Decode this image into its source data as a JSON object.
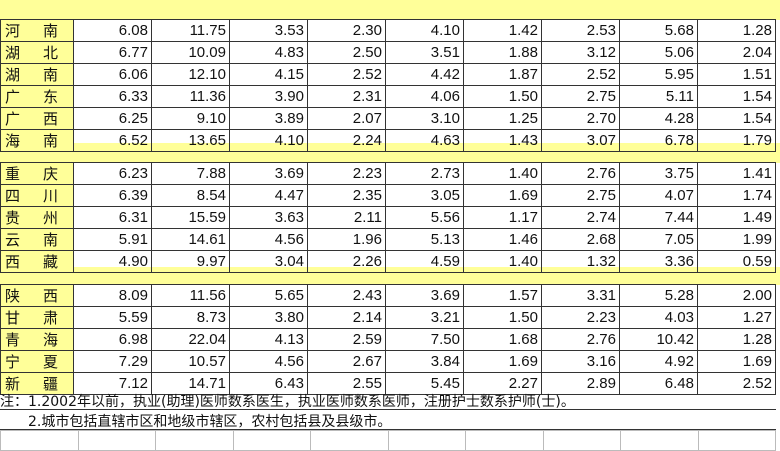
{
  "groups": [
    {
      "rows": [
        {
          "name": [
            "河",
            "南"
          ],
          "values": [
            "6.08",
            "11.75",
            "3.53",
            "2.30",
            "4.10",
            "1.42",
            "2.53",
            "5.68",
            "1.28"
          ]
        },
        {
          "name": [
            "湖",
            "北"
          ],
          "values": [
            "6.77",
            "10.09",
            "4.83",
            "2.50",
            "3.51",
            "1.88",
            "3.12",
            "5.06",
            "2.04"
          ]
        },
        {
          "name": [
            "湖",
            "南"
          ],
          "values": [
            "6.06",
            "12.10",
            "4.15",
            "2.52",
            "4.42",
            "1.87",
            "2.52",
            "5.95",
            "1.51"
          ]
        },
        {
          "name": [
            "广",
            "东"
          ],
          "values": [
            "6.33",
            "11.36",
            "3.90",
            "2.31",
            "4.06",
            "1.50",
            "2.75",
            "5.11",
            "1.54"
          ]
        },
        {
          "name": [
            "广",
            "西"
          ],
          "values": [
            "6.25",
            "9.10",
            "3.89",
            "2.07",
            "3.10",
            "1.25",
            "2.70",
            "4.28",
            "1.54"
          ]
        },
        {
          "name": [
            "海",
            "南"
          ],
          "values": [
            "6.52",
            "13.65",
            "4.10",
            "2.24",
            "4.63",
            "1.43",
            "3.07",
            "6.78",
            "1.79"
          ]
        }
      ]
    },
    {
      "rows": [
        {
          "name": [
            "重",
            "庆"
          ],
          "values": [
            "6.23",
            "7.88",
            "3.69",
            "2.23",
            "2.73",
            "1.40",
            "2.76",
            "3.75",
            "1.41"
          ]
        },
        {
          "name": [
            "四",
            "川"
          ],
          "values": [
            "6.39",
            "8.54",
            "4.47",
            "2.35",
            "3.05",
            "1.69",
            "2.75",
            "4.07",
            "1.74"
          ]
        },
        {
          "name": [
            "贵",
            "州"
          ],
          "values": [
            "6.31",
            "15.59",
            "3.63",
            "2.11",
            "5.56",
            "1.17",
            "2.74",
            "7.44",
            "1.49"
          ]
        },
        {
          "name": [
            "云",
            "南"
          ],
          "values": [
            "5.91",
            "14.61",
            "4.56",
            "1.96",
            "5.13",
            "1.46",
            "2.68",
            "7.05",
            "1.99"
          ]
        },
        {
          "name": [
            "西",
            "藏"
          ],
          "values": [
            "4.90",
            "9.97",
            "3.04",
            "2.26",
            "4.59",
            "1.40",
            "1.32",
            "3.36",
            "0.59"
          ]
        }
      ]
    },
    {
      "rows": [
        {
          "name": [
            "陕",
            "西"
          ],
          "values": [
            "8.09",
            "11.56",
            "5.65",
            "2.43",
            "3.69",
            "1.57",
            "3.31",
            "5.28",
            "2.00"
          ]
        },
        {
          "name": [
            "甘",
            "肃"
          ],
          "values": [
            "5.59",
            "8.73",
            "3.80",
            "2.14",
            "3.21",
            "1.50",
            "2.23",
            "4.03",
            "1.27"
          ]
        },
        {
          "name": [
            "青",
            "海"
          ],
          "values": [
            "6.98",
            "22.04",
            "4.13",
            "2.59",
            "7.50",
            "1.68",
            "2.76",
            "10.42",
            "1.28"
          ]
        },
        {
          "name": [
            "宁",
            "夏"
          ],
          "values": [
            "7.29",
            "10.57",
            "4.56",
            "2.67",
            "3.84",
            "1.69",
            "3.16",
            "4.92",
            "1.69"
          ]
        },
        {
          "name": [
            "新",
            "疆"
          ],
          "values": [
            "7.12",
            "14.71",
            "6.43",
            "2.55",
            "5.45",
            "2.27",
            "2.89",
            "6.48",
            "2.52"
          ]
        }
      ]
    }
  ],
  "notes": [
    "注：1.2002年以前，执业(助理)医师数系医生，执业医师数系医师，注册护士数系护师(士)。",
    "2.城市包括直辖市区和地级市辖区，农村包括县及县级市。"
  ],
  "colors": {
    "name_column_bg": "#ffff99",
    "separator_bg": "#ffff99"
  }
}
